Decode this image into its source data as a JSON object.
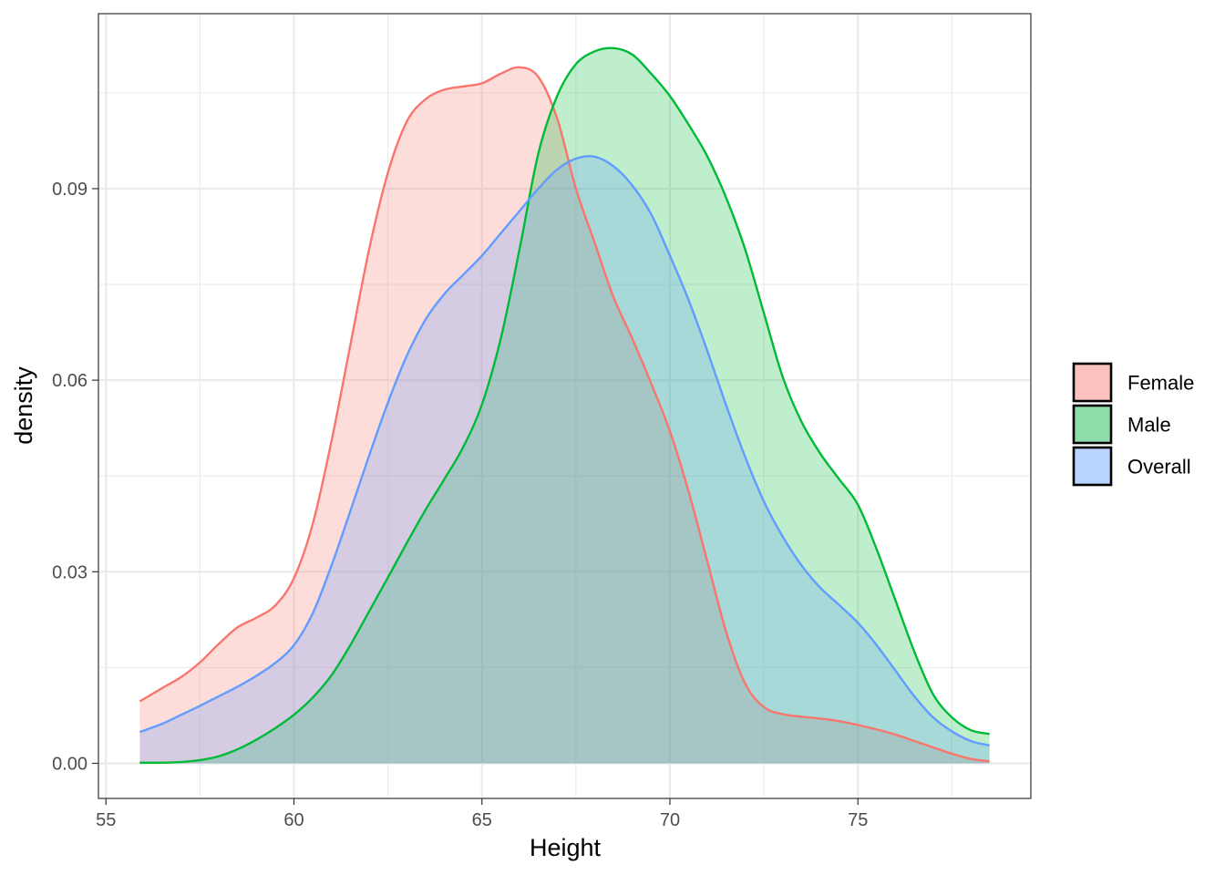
{
  "chart_data": {
    "type": "area",
    "xlabel": "Height",
    "ylabel": "density",
    "xlim": [
      54.8,
      79.6
    ],
    "ylim": [
      -0.0055,
      0.1174
    ],
    "x_ticks": [
      55,
      60,
      65,
      70,
      75
    ],
    "x_tick_labels": [
      "55",
      "60",
      "65",
      "70",
      "75"
    ],
    "y_ticks": [
      0.0,
      0.03,
      0.06,
      0.09
    ],
    "y_tick_labels": [
      "0.00",
      "0.03",
      "0.06",
      "0.09"
    ],
    "grid": true,
    "legend_position": "right",
    "fill_opacity": 0.25,
    "series": [
      {
        "name": "Female",
        "line_color": "#F8766D",
        "fill_color": "#F8766D",
        "legend_color": "#FBC1BC",
        "x": [
          55.9,
          56.5,
          57.0,
          57.5,
          58.0,
          58.5,
          59.0,
          59.5,
          60.0,
          60.5,
          61.0,
          61.5,
          62.0,
          62.5,
          63.0,
          63.5,
          64.0,
          64.5,
          65.0,
          65.5,
          66.0,
          66.5,
          67.0,
          67.5,
          68.0,
          68.5,
          69.0,
          69.5,
          70.0,
          70.5,
          71.0,
          71.5,
          72.0,
          72.5,
          73.0,
          73.5,
          74.0,
          74.5,
          75.0,
          75.5,
          76.0,
          76.5,
          77.0,
          77.5,
          78.0,
          78.5
        ],
        "y": [
          0.0097,
          0.0118,
          0.0135,
          0.0158,
          0.0187,
          0.0213,
          0.0228,
          0.0247,
          0.029,
          0.0375,
          0.0505,
          0.0655,
          0.0805,
          0.0925,
          0.1005,
          0.104,
          0.1055,
          0.106,
          0.1065,
          0.108,
          0.109,
          0.1075,
          0.101,
          0.09,
          0.0815,
          0.073,
          0.0665,
          0.0595,
          0.052,
          0.0425,
          0.0315,
          0.0205,
          0.0125,
          0.0088,
          0.0077,
          0.0073,
          0.007,
          0.0066,
          0.006,
          0.0053,
          0.0045,
          0.0035,
          0.0025,
          0.0015,
          0.0007,
          0.0003
        ]
      },
      {
        "name": "Male",
        "line_color": "#00BA38",
        "fill_color": "#00BA38",
        "legend_color": "#8FDDA9",
        "x": [
          55.9,
          56.5,
          57.0,
          57.5,
          58.0,
          58.5,
          59.0,
          59.5,
          60.0,
          60.5,
          61.0,
          61.5,
          62.0,
          62.5,
          63.0,
          63.5,
          64.0,
          64.5,
          65.0,
          65.5,
          66.0,
          66.5,
          67.0,
          67.5,
          68.0,
          68.5,
          69.0,
          69.5,
          70.0,
          70.5,
          71.0,
          71.5,
          72.0,
          72.5,
          73.0,
          73.5,
          74.0,
          74.5,
          75.0,
          75.5,
          76.0,
          76.5,
          77.0,
          77.5,
          78.0,
          78.5
        ],
        "y": [
          0.0001,
          0.0001,
          0.0002,
          0.0005,
          0.0011,
          0.0022,
          0.0037,
          0.0055,
          0.0076,
          0.0103,
          0.0138,
          0.0185,
          0.0238,
          0.0291,
          0.0345,
          0.0397,
          0.0445,
          0.0495,
          0.0562,
          0.0665,
          0.0805,
          0.0955,
          0.1045,
          0.1095,
          0.1115,
          0.112,
          0.111,
          0.108,
          0.1045,
          0.1,
          0.095,
          0.0885,
          0.0805,
          0.0705,
          0.0605,
          0.0535,
          0.0485,
          0.0445,
          0.0405,
          0.0335,
          0.0255,
          0.0175,
          0.0108,
          0.0072,
          0.0052,
          0.0046
        ]
      },
      {
        "name": "Overall",
        "line_color": "#619CFF",
        "fill_color": "#619CFF",
        "legend_color": "#B9D4FF",
        "x": [
          55.9,
          56.5,
          57.0,
          57.5,
          58.0,
          58.5,
          59.0,
          59.5,
          60.0,
          60.5,
          61.0,
          61.5,
          62.0,
          62.5,
          63.0,
          63.5,
          64.0,
          64.5,
          65.0,
          65.5,
          66.0,
          66.5,
          67.0,
          67.5,
          68.0,
          68.5,
          69.0,
          69.5,
          70.0,
          70.5,
          71.0,
          71.5,
          72.0,
          72.5,
          73.0,
          73.5,
          74.0,
          74.5,
          75.0,
          75.5,
          76.0,
          76.5,
          77.0,
          77.5,
          78.0,
          78.5
        ],
        "y": [
          0.0049,
          0.0062,
          0.0076,
          0.009,
          0.0105,
          0.012,
          0.0137,
          0.0157,
          0.0185,
          0.0235,
          0.031,
          0.0395,
          0.0482,
          0.0565,
          0.0638,
          0.0695,
          0.0735,
          0.0765,
          0.0795,
          0.083,
          0.0865,
          0.09,
          0.093,
          0.0947,
          0.095,
          0.0935,
          0.0905,
          0.086,
          0.0795,
          0.0725,
          0.0645,
          0.056,
          0.048,
          0.041,
          0.0355,
          0.031,
          0.0275,
          0.0248,
          0.022,
          0.0185,
          0.0145,
          0.0105,
          0.0072,
          0.005,
          0.0035,
          0.0028
        ]
      }
    ]
  }
}
